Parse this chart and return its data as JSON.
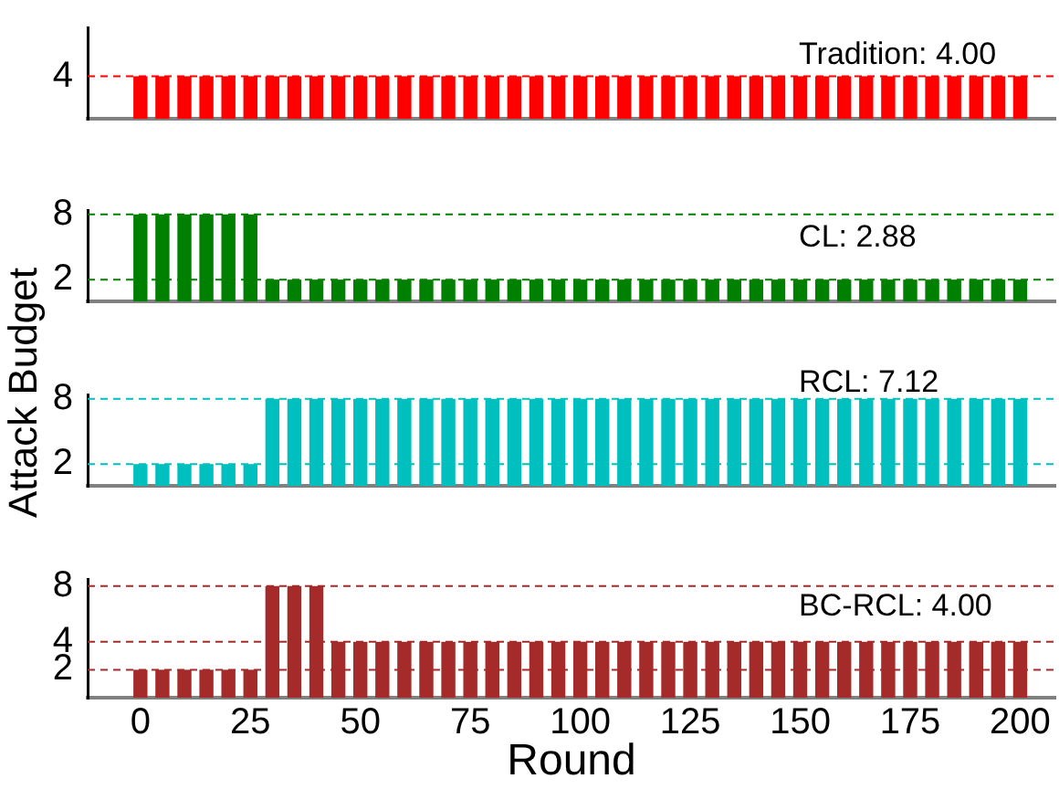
{
  "chart_data": [
    {
      "type": "bar",
      "x": [
        0,
        5,
        10,
        15,
        20,
        25,
        30,
        35,
        40,
        45,
        50,
        55,
        60,
        65,
        70,
        75,
        80,
        85,
        90,
        95,
        100,
        105,
        110,
        115,
        120,
        125,
        130,
        135,
        140,
        145,
        150,
        155,
        160,
        165,
        170,
        175,
        180,
        185,
        190,
        195,
        200
      ],
      "values": [
        4,
        4,
        4,
        4,
        4,
        4,
        4,
        4,
        4,
        4,
        4,
        4,
        4,
        4,
        4,
        4,
        4,
        4,
        4,
        4,
        4,
        4,
        4,
        4,
        4,
        4,
        4,
        4,
        4,
        4,
        4,
        4,
        4,
        4,
        4,
        4,
        4,
        4,
        4,
        4,
        4
      ],
      "color": "#ff0000",
      "xlim": [
        -12,
        208
      ],
      "ylim": [
        0,
        8.6
      ],
      "yticks": [
        4
      ],
      "tick_labels": "y",
      "ref_lines": [
        {
          "axis": "y",
          "value": 4,
          "color": "#ff0000",
          "line_style": "dashed"
        }
      ],
      "annotations": [
        "Tradition: 4.00"
      ]
    },
    {
      "type": "bar",
      "x": [
        0,
        5,
        10,
        15,
        20,
        25,
        30,
        35,
        40,
        45,
        50,
        55,
        60,
        65,
        70,
        75,
        80,
        85,
        90,
        95,
        100,
        105,
        110,
        115,
        120,
        125,
        130,
        135,
        140,
        145,
        150,
        155,
        160,
        165,
        170,
        175,
        180,
        185,
        190,
        195,
        200
      ],
      "values": [
        8,
        8,
        8,
        8,
        8,
        8,
        2,
        2,
        2,
        2,
        2,
        2,
        2,
        2,
        2,
        2,
        2,
        2,
        2,
        2,
        2,
        2,
        2,
        2,
        2,
        2,
        2,
        2,
        2,
        2,
        2,
        2,
        2,
        2,
        2,
        2,
        2,
        2,
        2,
        2,
        2
      ],
      "color": "#008000",
      "xlim": [
        -12,
        208
      ],
      "ylim": [
        0,
        8.4
      ],
      "yticks": [
        2,
        8
      ],
      "tick_labels": "y",
      "ylabel": "Attack Budget",
      "ref_lines": [
        {
          "axis": "y",
          "value": 8,
          "color": "#008000",
          "line_style": "dashed"
        },
        {
          "axis": "y",
          "value": 2,
          "color": "#008000",
          "line_style": "dashed"
        }
      ],
      "annotations": [
        "CL: 2.88"
      ]
    },
    {
      "type": "bar",
      "x": [
        0,
        5,
        10,
        15,
        20,
        25,
        30,
        35,
        40,
        45,
        50,
        55,
        60,
        65,
        70,
        75,
        80,
        85,
        90,
        95,
        100,
        105,
        110,
        115,
        120,
        125,
        130,
        135,
        140,
        145,
        150,
        155,
        160,
        165,
        170,
        175,
        180,
        185,
        190,
        195,
        200
      ],
      "values": [
        2,
        2,
        2,
        2,
        2,
        2,
        8,
        8,
        8,
        8,
        8,
        8,
        8,
        8,
        8,
        8,
        8,
        8,
        8,
        8,
        8,
        8,
        8,
        8,
        8,
        8,
        8,
        8,
        8,
        8,
        8,
        8,
        8,
        8,
        8,
        8,
        8,
        8,
        8,
        8,
        8
      ],
      "color": "#00bfbf",
      "xlim": [
        -12,
        208
      ],
      "ylim": [
        0,
        8.4
      ],
      "yticks": [
        2,
        8
      ],
      "tick_labels": "y",
      "ref_lines": [
        {
          "axis": "y",
          "value": 8,
          "color": "#00bfbf",
          "line_style": "dashed"
        },
        {
          "axis": "y",
          "value": 2,
          "color": "#00bfbf",
          "line_style": "dashed"
        }
      ],
      "annotations": [
        "RCL: 7.12"
      ]
    },
    {
      "type": "bar",
      "x": [
        0,
        5,
        10,
        15,
        20,
        25,
        30,
        35,
        40,
        45,
        50,
        55,
        60,
        65,
        70,
        75,
        80,
        85,
        90,
        95,
        100,
        105,
        110,
        115,
        120,
        125,
        130,
        135,
        140,
        145,
        150,
        155,
        160,
        165,
        170,
        175,
        180,
        185,
        190,
        195,
        200
      ],
      "values": [
        2,
        2,
        2,
        2,
        2,
        2,
        8,
        8,
        8,
        4,
        4,
        4,
        4,
        4,
        4,
        4,
        4,
        4,
        4,
        4,
        4,
        4,
        4,
        4,
        4,
        4,
        4,
        4,
        4,
        4,
        4,
        4,
        4,
        4,
        4,
        4,
        4,
        4,
        4,
        4,
        4
      ],
      "color": "#a52a2a",
      "xlim": [
        -12,
        208
      ],
      "xticks": [
        0,
        25,
        50,
        75,
        100,
        125,
        150,
        175,
        200
      ],
      "ylim": [
        0,
        8.5
      ],
      "yticks": [
        2,
        4,
        8
      ],
      "xlabel": "Round",
      "ref_lines": [
        {
          "axis": "y",
          "value": 8,
          "color": "#a52a2a",
          "line_style": "dashed"
        },
        {
          "axis": "y",
          "value": 4,
          "color": "#a52a2a",
          "line_style": "dashed"
        },
        {
          "axis": "y",
          "value": 2,
          "color": "#a52a2a",
          "line_style": "dashed"
        }
      ],
      "annotations": [
        "BC-RCL: 4.00"
      ]
    }
  ]
}
